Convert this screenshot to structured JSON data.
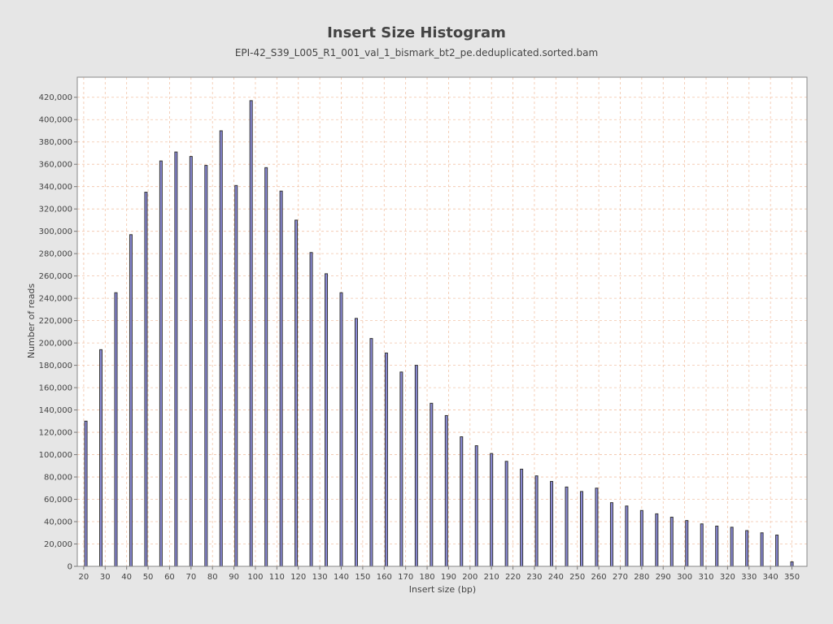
{
  "chart_data": {
    "type": "bar",
    "title": "Insert Size Histogram",
    "subtitle": "EPI-42_S39_L005_R1_001_val_1_bismark_bt2_pe.deduplicated.sorted.bam",
    "xlabel": "Insert size (bp)",
    "ylabel": "Number of reads",
    "xlim": [
      17,
      357
    ],
    "ylim": [
      0,
      438000
    ],
    "grid": true,
    "x_ticks": [
      "20",
      "30",
      "40",
      "50",
      "60",
      "70",
      "80",
      "90",
      "100",
      "110",
      "120",
      "130",
      "140",
      "150",
      "160",
      "170",
      "180",
      "190",
      "200",
      "210",
      "220",
      "230",
      "240",
      "250",
      "260",
      "270",
      "280",
      "290",
      "300",
      "310",
      "320",
      "330",
      "340",
      "350"
    ],
    "y_ticks": [
      "0",
      "20,000",
      "40,000",
      "60,000",
      "80,000",
      "100,000",
      "120,000",
      "140,000",
      "160,000",
      "180,000",
      "200,000",
      "220,000",
      "240,000",
      "260,000",
      "280,000",
      "300,000",
      "320,000",
      "340,000",
      "360,000",
      "380,000",
      "400,000",
      "420,000"
    ],
    "x": [
      21,
      28,
      35,
      42,
      49,
      56,
      63,
      70,
      77,
      84,
      91,
      98,
      105,
      112,
      119,
      126,
      133,
      140,
      147,
      154,
      161,
      168,
      175,
      182,
      189,
      196,
      203,
      210,
      217,
      224,
      231,
      238,
      245,
      252,
      259,
      266,
      273,
      280,
      287,
      294,
      301,
      308,
      315,
      322,
      329,
      336,
      343,
      350
    ],
    "values": [
      130000,
      194000,
      245000,
      297000,
      335000,
      363000,
      371000,
      367000,
      359000,
      390000,
      341000,
      417000,
      357000,
      336000,
      310000,
      281000,
      262000,
      245000,
      222000,
      204000,
      191000,
      174000,
      180000,
      146000,
      135000,
      116000,
      108000,
      101000,
      94000,
      87000,
      81000,
      76000,
      71000,
      67000,
      70000,
      57000,
      54000,
      50000,
      47000,
      44000,
      41000,
      38000,
      36000,
      35000,
      32000,
      30000,
      28000,
      4000
    ]
  },
  "colors": {
    "background": "#e6e6e6",
    "plot_background": "#ffffff",
    "grid": "#f2c4a8",
    "bar_fill": "#8c8cd9",
    "bar_stroke": "#333333",
    "text": "#444444"
  }
}
